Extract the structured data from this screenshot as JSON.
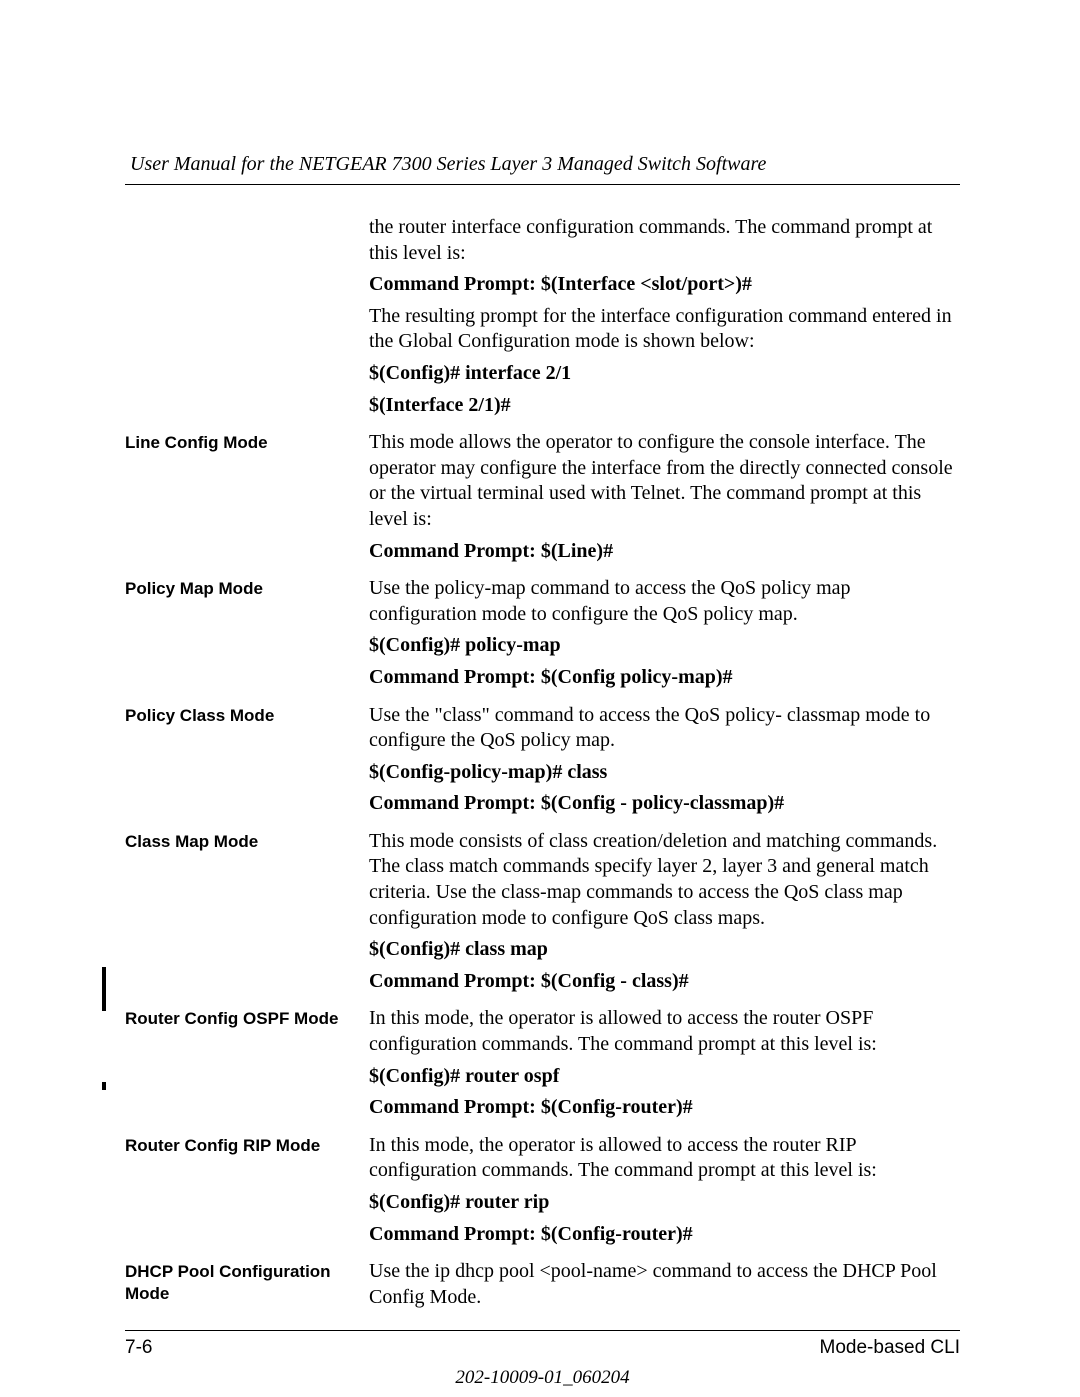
{
  "header": {
    "title": "User Manual for the NETGEAR 7300 Series Layer 3 Managed Switch Software"
  },
  "intro": {
    "p1": "the router interface configuration commands. The command prompt at this level is:",
    "cmd1": "Command Prompt: $(Interface <slot/port>)#",
    "p2": "The resulting prompt for the interface configuration command entered in the Global Configuration mode is shown below:",
    "cmd2": "$(Config)# interface 2/1",
    "cmd3": "$(Interface 2/1)#"
  },
  "rows": [
    {
      "label": "Line Config Mode",
      "blocks": [
        {
          "bold": false,
          "text": "This mode allows the operator to configure the console interface. The operator may configure the interface from the directly connected console or the virtual terminal used with Telnet. The command prompt at this level is:"
        },
        {
          "bold": true,
          "text": "Command Prompt: $(Line)#"
        }
      ]
    },
    {
      "label": "Policy Map Mode",
      "blocks": [
        {
          "bold": false,
          "text": "Use the policy-map command to access the QoS policy map configuration mode to configure the QoS policy map."
        },
        {
          "bold": true,
          "text": "$(Config)# policy-map"
        },
        {
          "bold": true,
          "text": "Command Prompt: $(Config policy-map)#"
        }
      ]
    },
    {
      "label": "Policy Class Mode",
      "blocks": [
        {
          "bold": false,
          "text": "Use the \"class\" command to access the QoS policy- classmap mode to configure the QoS policy map."
        },
        {
          "bold": true,
          "text": "$(Config-policy-map)# class"
        },
        {
          "bold": true,
          "text": "Command Prompt: $(Config - policy-classmap)#"
        }
      ]
    },
    {
      "label": "Class Map Mode",
      "blocks": [
        {
          "bold": false,
          "text": "This mode consists of class creation/deletion and matching commands. The class match commands specify layer 2, layer 3 and general match criteria. Use the class-map commands to access the QoS class map configuration mode to configure QoS class maps."
        },
        {
          "bold": true,
          "text": "$(Config)# class map"
        },
        {
          "bold": true,
          "text": "Command Prompt: $(Config - class)#"
        }
      ]
    },
    {
      "label": "Router Config OSPF Mode",
      "blocks": [
        {
          "bold": false,
          "text": "In this mode, the operator is allowed to access the router OSPF configuration commands. The command prompt at this level is:"
        },
        {
          "bold": true,
          "text": "$(Config)# router ospf"
        },
        {
          "bold": true,
          "text": "Command Prompt: $(Config-router)#"
        }
      ]
    },
    {
      "label": "Router Config RIP Mode",
      "blocks": [
        {
          "bold": false,
          "text": "In this mode, the operator is allowed to access the router RIP configuration commands. The command prompt at this level is:"
        },
        {
          "bold": true,
          "text": "$(Config)# router rip"
        },
        {
          "bold": true,
          "text": "Command Prompt: $(Config-router)#"
        }
      ]
    },
    {
      "label": "DHCP Pool Configuration Mode",
      "blocks": [
        {
          "bold": false,
          "text": "Use the ip dhcp pool <pool-name> command to access the DHCP Pool Config Mode."
        }
      ]
    }
  ],
  "footer": {
    "page": "7-6",
    "section": "Mode-based CLI",
    "docnum": "202-10009-01_060204"
  }
}
